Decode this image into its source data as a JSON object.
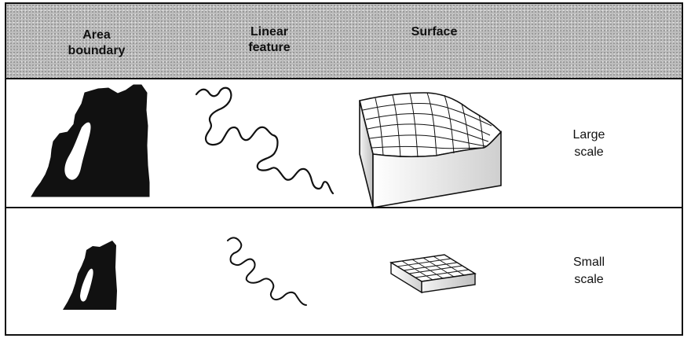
{
  "headers": {
    "area_line1": "Area",
    "area_line2": "boundary",
    "linear_line1": "Linear",
    "linear_line2": "feature",
    "surface": "Surface"
  },
  "rows": {
    "large_line1": "Large",
    "large_line2": "scale",
    "small_line1": "Small",
    "small_line2": "scale"
  },
  "colors": {
    "ink": "#111111",
    "header_stipple": "#bdbdbd"
  }
}
